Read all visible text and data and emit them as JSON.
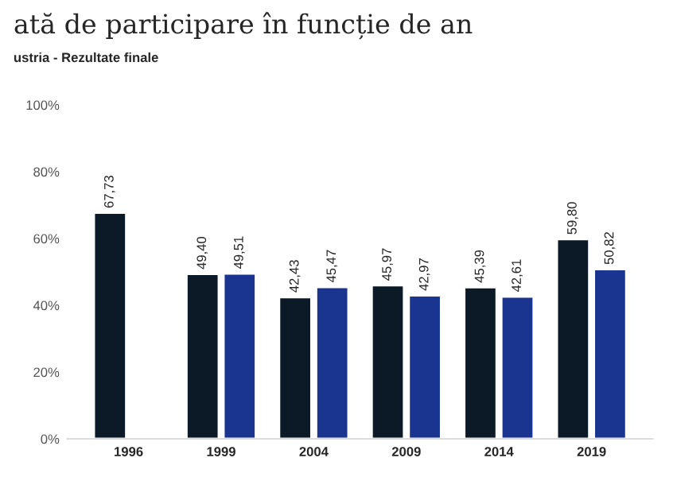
{
  "chart_data": {
    "type": "bar",
    "title": "ată de participare în funcție de an",
    "subtitle": "ustria - Rezultate finale",
    "categories": [
      "1996",
      "1999",
      "2004",
      "2009",
      "2014",
      "2019"
    ],
    "series": [
      {
        "color": "#0b1a26",
        "values": [
          67.73,
          49.4,
          42.43,
          45.97,
          45.39,
          59.8
        ],
        "value_labels": [
          "67,73",
          "49,40",
          "42,43",
          "45,97",
          "45,39",
          "59,80"
        ]
      },
      {
        "color": "#1a3590",
        "values": [
          null,
          49.51,
          45.47,
          42.97,
          42.61,
          50.82
        ],
        "value_labels": [
          null,
          "49,51",
          "45,47",
          "42,97",
          "42,61",
          "50,82"
        ]
      }
    ],
    "ylim": [
      0,
      100
    ],
    "yticks": [
      {
        "value": 0,
        "label": "0%"
      },
      {
        "value": 20,
        "label": "20%"
      },
      {
        "value": 40,
        "label": "40%"
      },
      {
        "value": 60,
        "label": "60%"
      },
      {
        "value": 80,
        "label": "80%"
      },
      {
        "value": 100,
        "label": "100%"
      }
    ],
    "grid": false,
    "legend": false
  }
}
